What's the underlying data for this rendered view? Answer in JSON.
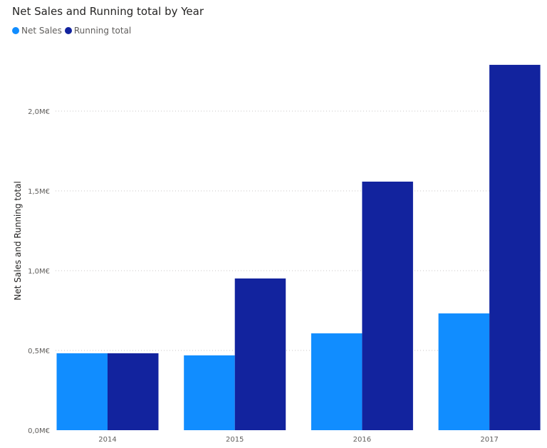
{
  "chart_data": {
    "type": "bar",
    "title": "Net Sales and Running total by Year",
    "ylabel": "Net Sales and Running total",
    "xlabel": "",
    "categories": [
      "2014",
      "2015",
      "2016",
      "2017"
    ],
    "series": [
      {
        "name": "Net Sales",
        "color": "#118DFF",
        "values": [
          0.482,
          0.469,
          0.607,
          0.732
        ]
      },
      {
        "name": "Running total",
        "color": "#12239E",
        "values": [
          0.482,
          0.951,
          1.558,
          2.29
        ]
      }
    ],
    "yticks": [
      0,
      0.5,
      1.0,
      1.5,
      2.0
    ],
    "ytick_labels": [
      "0,0M€",
      "0,5M€",
      "1,0M€",
      "1,5M€",
      "2,0M€"
    ],
    "unit": "M€",
    "ylim": [
      0,
      2.3
    ],
    "grid": true,
    "legend": "top-left"
  }
}
